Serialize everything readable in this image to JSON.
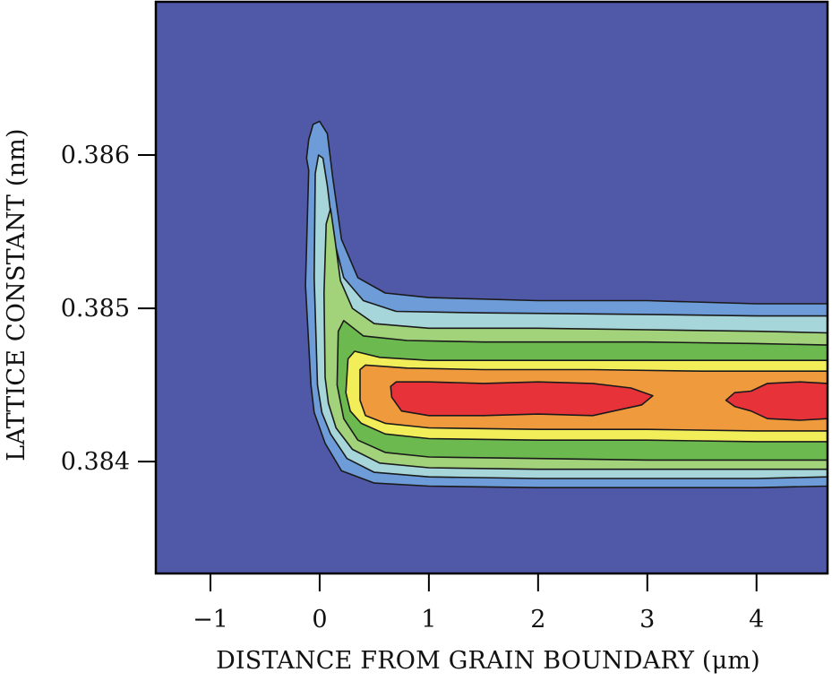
{
  "chart_data": {
    "type": "heatmap",
    "title": "",
    "xlabel": "DISTANCE FROM GRAIN BOUNDARY (μm)",
    "ylabel": "LATTICE CONSTANT (nm)",
    "xlim": [
      -1.5,
      4.65
    ],
    "ylim": [
      0.38327,
      0.387
    ],
    "x_ticks": [
      -1,
      0,
      1,
      2,
      3,
      4
    ],
    "x_tick_labels": [
      "−1",
      "0",
      "1",
      "2",
      "3",
      "4"
    ],
    "y_ticks": [
      0.384,
      0.385,
      0.386
    ],
    "y_tick_labels": [
      "0.384",
      "0.385",
      "0.386"
    ],
    "grid": false,
    "legend": "none",
    "colormap": [
      "#5058a8",
      "#6d9cd8",
      "#a6d6da",
      "#a2d27a",
      "#6cba4f",
      "#f2ee5a",
      "#f09a3e",
      "#e8323a"
    ],
    "contour_levels": [
      {
        "level": 1,
        "color": "#6d9cd8",
        "polygon": [
          [
            -0.08,
            0.3845
          ],
          [
            -0.13,
            0.38515
          ],
          [
            -0.1,
            0.3859
          ],
          [
            -0.12,
            0.38598
          ],
          [
            -0.1,
            0.3861
          ],
          [
            -0.06,
            0.3862
          ],
          [
            0.0,
            0.38622
          ],
          [
            0.07,
            0.38614
          ],
          [
            0.12,
            0.38585
          ],
          [
            0.2,
            0.38545
          ],
          [
            0.35,
            0.3852
          ],
          [
            0.6,
            0.3851
          ],
          [
            1.0,
            0.38507
          ],
          [
            2.0,
            0.38505
          ],
          [
            3.0,
            0.38505
          ],
          [
            4.0,
            0.38503
          ],
          [
            4.65,
            0.38503
          ],
          [
            4.65,
            0.38384
          ],
          [
            4.0,
            0.38383
          ],
          [
            3.0,
            0.38383
          ],
          [
            2.0,
            0.38383
          ],
          [
            1.0,
            0.38384
          ],
          [
            0.5,
            0.38386
          ],
          [
            0.2,
            0.38394
          ],
          [
            0.05,
            0.38412
          ],
          [
            -0.05,
            0.38432
          ]
        ]
      },
      {
        "level": 2,
        "color": "#a6d6da",
        "polygon": [
          [
            -0.02,
            0.3845
          ],
          [
            -0.05,
            0.3852
          ],
          [
            -0.04,
            0.38588
          ],
          [
            -0.01,
            0.386
          ],
          [
            0.03,
            0.38598
          ],
          [
            0.07,
            0.3858
          ],
          [
            0.13,
            0.38545
          ],
          [
            0.22,
            0.3852
          ],
          [
            0.4,
            0.38505
          ],
          [
            0.7,
            0.38498
          ],
          [
            1.5,
            0.38497
          ],
          [
            3.0,
            0.38496
          ],
          [
            4.0,
            0.38495
          ],
          [
            4.65,
            0.38495
          ],
          [
            4.65,
            0.3839
          ],
          [
            4.0,
            0.38389
          ],
          [
            3.0,
            0.38389
          ],
          [
            2.0,
            0.38389
          ],
          [
            1.0,
            0.3839
          ],
          [
            0.5,
            0.38393
          ],
          [
            0.25,
            0.38402
          ],
          [
            0.1,
            0.38418
          ],
          [
            0.02,
            0.38432
          ]
        ]
      },
      {
        "level": 3,
        "color": "#a2d27a",
        "polygon": [
          [
            0.05,
            0.38455
          ],
          [
            0.04,
            0.3851
          ],
          [
            0.06,
            0.38555
          ],
          [
            0.1,
            0.38565
          ],
          [
            0.14,
            0.38545
          ],
          [
            0.19,
            0.38518
          ],
          [
            0.3,
            0.385
          ],
          [
            0.5,
            0.3849
          ],
          [
            1.0,
            0.38487
          ],
          [
            2.0,
            0.38487
          ],
          [
            3.0,
            0.38486
          ],
          [
            4.0,
            0.38485
          ],
          [
            4.65,
            0.38484
          ],
          [
            4.65,
            0.38395
          ],
          [
            4.0,
            0.38395
          ],
          [
            3.0,
            0.38395
          ],
          [
            2.0,
            0.38395
          ],
          [
            1.0,
            0.38396
          ],
          [
            0.55,
            0.38399
          ],
          [
            0.3,
            0.38408
          ],
          [
            0.15,
            0.38422
          ],
          [
            0.08,
            0.38438
          ]
        ]
      },
      {
        "level": 4,
        "color": "#6cba4f",
        "polygon": [
          [
            0.16,
            0.3845
          ],
          [
            0.17,
            0.38485
          ],
          [
            0.22,
            0.38492
          ],
          [
            0.4,
            0.38482
          ],
          [
            0.8,
            0.38479
          ],
          [
            1.5,
            0.38478
          ],
          [
            3.0,
            0.38478
          ],
          [
            4.0,
            0.38477
          ],
          [
            4.65,
            0.38476
          ],
          [
            4.65,
            0.38401
          ],
          [
            4.0,
            0.38401
          ],
          [
            3.0,
            0.38401
          ],
          [
            2.0,
            0.38402
          ],
          [
            1.0,
            0.38403
          ],
          [
            0.6,
            0.38406
          ],
          [
            0.35,
            0.38414
          ],
          [
            0.22,
            0.38428
          ]
        ]
      },
      {
        "level": 5,
        "color": "#f2ee5a",
        "polygon": [
          [
            0.24,
            0.38445
          ],
          [
            0.26,
            0.38467
          ],
          [
            0.32,
            0.38472
          ],
          [
            0.55,
            0.38468
          ],
          [
            1.0,
            0.38466
          ],
          [
            2.0,
            0.38466
          ],
          [
            3.0,
            0.38466
          ],
          [
            4.0,
            0.38466
          ],
          [
            4.65,
            0.38466
          ],
          [
            4.65,
            0.38413
          ],
          [
            4.0,
            0.38413
          ],
          [
            3.0,
            0.38414
          ],
          [
            2.0,
            0.38414
          ],
          [
            1.0,
            0.38415
          ],
          [
            0.6,
            0.38418
          ],
          [
            0.38,
            0.38425
          ],
          [
            0.28,
            0.38433
          ]
        ]
      },
      {
        "level": 6,
        "color": "#f09a3e",
        "polygon": [
          [
            0.37,
            0.3844
          ],
          [
            0.37,
            0.3846
          ],
          [
            0.42,
            0.38463
          ],
          [
            0.8,
            0.38461
          ],
          [
            1.5,
            0.3846
          ],
          [
            2.5,
            0.3846
          ],
          [
            3.5,
            0.38459
          ],
          [
            4.65,
            0.38459
          ],
          [
            4.65,
            0.3842
          ],
          [
            4.0,
            0.3842
          ],
          [
            3.0,
            0.38421
          ],
          [
            2.0,
            0.38421
          ],
          [
            1.0,
            0.38422
          ],
          [
            0.6,
            0.38425
          ],
          [
            0.42,
            0.3843
          ]
        ]
      },
      {
        "level": 7,
        "color": "#e8323a",
        "polygon": [
          [
            0.66,
            0.38442
          ],
          [
            0.65,
            0.38449
          ],
          [
            0.7,
            0.38452
          ],
          [
            1.0,
            0.38452
          ],
          [
            1.5,
            0.38451
          ],
          [
            2.0,
            0.38452
          ],
          [
            2.5,
            0.38451
          ],
          [
            2.85,
            0.38448
          ],
          [
            3.05,
            0.38443
          ],
          [
            2.95,
            0.38437
          ],
          [
            2.5,
            0.3843
          ],
          [
            2.0,
            0.38431
          ],
          [
            1.5,
            0.3843
          ],
          [
            1.0,
            0.3843
          ],
          [
            0.75,
            0.38433
          ]
        ]
      },
      {
        "level": 7,
        "color": "#e8323a",
        "polygon": [
          [
            3.72,
            0.3844
          ],
          [
            3.8,
            0.38445
          ],
          [
            3.95,
            0.38446
          ],
          [
            4.1,
            0.38451
          ],
          [
            4.4,
            0.38452
          ],
          [
            4.65,
            0.38451
          ],
          [
            4.65,
            0.38428
          ],
          [
            4.4,
            0.38427
          ],
          [
            4.1,
            0.38428
          ],
          [
            3.95,
            0.38433
          ],
          [
            3.8,
            0.38436
          ]
        ]
      }
    ]
  }
}
